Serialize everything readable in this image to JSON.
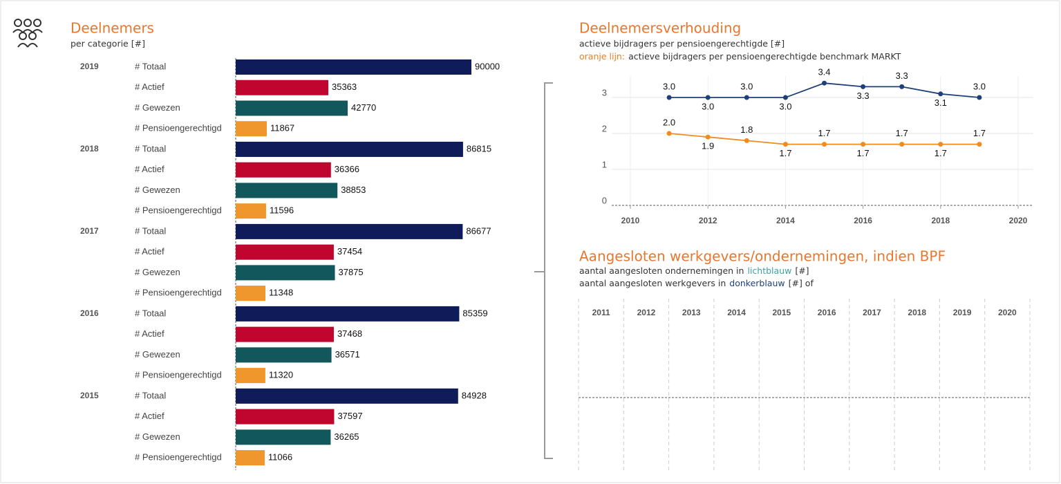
{
  "chart_data": [
    {
      "type": "bar",
      "orientation": "horizontal",
      "title": "Deelnemers",
      "subtitle": "per categorie [#]",
      "categories": [
        "2019",
        "2018",
        "2017",
        "2016",
        "2015"
      ],
      "series": [
        {
          "name": "# Totaal",
          "color": "#101c5a",
          "values": [
            90000,
            86815,
            86677,
            85359,
            84928
          ]
        },
        {
          "name": "# Actief",
          "color": "#c0062e",
          "values": [
            35363,
            36366,
            37454,
            37468,
            37597
          ]
        },
        {
          "name": "# Gewezen",
          "color": "#12575c",
          "values": [
            42770,
            38853,
            37875,
            36571,
            36265
          ]
        },
        {
          "name": "# Pensioengerechtigd",
          "color": "#ef962d",
          "values": [
            11867,
            11596,
            11348,
            11320,
            11066
          ]
        }
      ],
      "xlim": [
        0,
        90000
      ]
    },
    {
      "type": "line",
      "title": "Deelnemersverhouding",
      "subtitle": "actieve bijdragers per pensioengerechtigde [#]",
      "note": {
        "highlight": "oranje lijn:",
        "color": "#ef7d22",
        "text": "actieve bijdragers per pensioengerechtigde benchmark MARKT"
      },
      "x": [
        2011,
        2012,
        2013,
        2014,
        2015,
        2016,
        2017,
        2018,
        2019
      ],
      "series": [
        {
          "color": "#1f3f7a",
          "values": [
            3,
            3,
            3,
            3,
            3.4,
            3.3,
            3.3,
            3.1,
            3
          ],
          "value_labels": [
            "3.0",
            "3.0",
            "3.0",
            "3.0",
            "3.4",
            "3.3",
            "3.3",
            "3.1",
            "3.0"
          ]
        },
        {
          "color": "#f28a1e",
          "values": [
            2,
            1.9,
            1.8,
            1.7,
            1.7,
            1.7,
            1.7,
            1.7,
            1.7
          ],
          "value_labels": [
            "2.0",
            "1.9",
            "1.8",
            "1.7",
            "1.7",
            "1.7",
            "1.7",
            "1.7",
            "1.7"
          ]
        }
      ],
      "xlim": [
        2010,
        2020
      ],
      "xticks": [
        2010,
        2012,
        2014,
        2016,
        2018,
        2020
      ],
      "ylim": [
        0,
        3.5
      ],
      "yticks": [
        0,
        1,
        2,
        3
      ],
      "grid": true
    },
    {
      "type": "bar",
      "title": "Aangesloten werkgevers/ondernemingen, indien BPF",
      "subtitle_lines": [
        {
          "text": "aantal aangesloten ondernemingen in",
          "highlight": "lichtblauw",
          "color": "#3fa0a0",
          "suffix": "[#]"
        },
        {
          "text": "aantal aangesloten werkgevers in",
          "highlight": "donkerblauw",
          "color": "#1f3f7a",
          "suffix": "[#] of"
        }
      ],
      "categories": [
        "2011",
        "2012",
        "2013",
        "2014",
        "2015",
        "2016",
        "2017",
        "2018",
        "2019",
        "2020"
      ]
    }
  ]
}
